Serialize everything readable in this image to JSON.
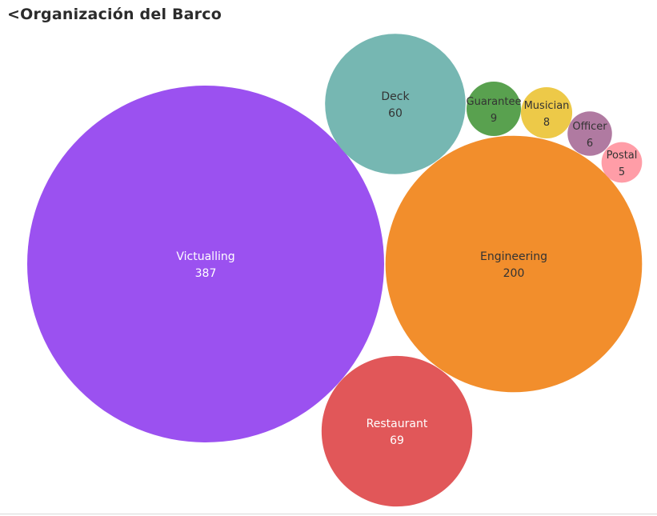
{
  "title": "<Organización del Barco",
  "chart_data": {
    "type": "bubble",
    "title": "<Organización del Barco",
    "bubbles": [
      {
        "label": "Victualling",
        "value": 387,
        "color": "#9b51f0",
        "text_color": "#ffffff"
      },
      {
        "label": "Engineering",
        "value": 200,
        "color": "#f28e2c",
        "text_color": "#333333"
      },
      {
        "label": "Restaurant",
        "value": 69,
        "color": "#e15759",
        "text_color": "#ffffff"
      },
      {
        "label": "Deck",
        "value": 60,
        "color": "#76b7b2",
        "text_color": "#333333"
      },
      {
        "label": "Guarantee",
        "value": 9,
        "color": "#59a14f",
        "text_color": "#333333"
      },
      {
        "label": "Musician",
        "value": 8,
        "color": "#edc948",
        "text_color": "#333333"
      },
      {
        "label": "Officer",
        "value": 6,
        "color": "#b07aa1",
        "text_color": "#333333"
      },
      {
        "label": "Postal",
        "value": 5,
        "color": "#ff9da7",
        "text_color": "#333333"
      }
    ]
  }
}
